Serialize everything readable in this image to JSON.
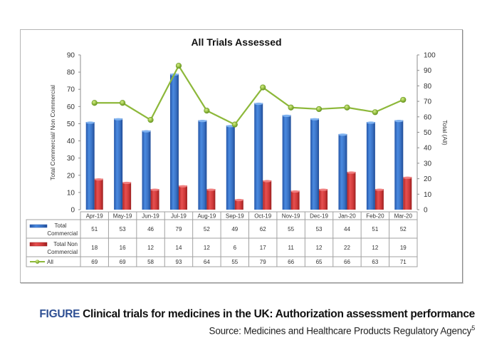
{
  "chart_data": {
    "type": "bar",
    "title": "All Trials Assessed",
    "categories": [
      "Apr-19",
      "May-19",
      "Jun-19",
      "Jul-19",
      "Aug-19",
      "Sep-19",
      "Oct-19",
      "Nov-19",
      "Dec-19",
      "Jan-20",
      "Feb-20",
      "Mar-20"
    ],
    "series": [
      {
        "name": "Total Commercial",
        "type": "bar",
        "axis": "left",
        "color": "#3a72c4",
        "values": [
          51,
          53,
          46,
          79,
          52,
          49,
          62,
          55,
          53,
          44,
          51,
          52
        ]
      },
      {
        "name": "Total Non Commercial",
        "type": "bar",
        "axis": "left",
        "color": "#d03a3a",
        "values": [
          18,
          16,
          12,
          14,
          12,
          6,
          17,
          11,
          12,
          22,
          12,
          19
        ]
      },
      {
        "name": "All",
        "type": "line",
        "axis": "right",
        "color": "#8db83a",
        "values": [
          69,
          69,
          58,
          93,
          64,
          55,
          79,
          66,
          65,
          66,
          63,
          71
        ]
      }
    ],
    "ylabel": "Total Commercial/ Non Commercial",
    "ylabel_right": "Total (All)",
    "ylim": [
      0,
      90
    ],
    "ylim_right": [
      0,
      100
    ],
    "yticks": [
      0,
      10,
      20,
      30,
      40,
      50,
      60,
      70,
      80,
      90
    ],
    "yticks_right": [
      0,
      10,
      20,
      30,
      40,
      50,
      60,
      70,
      80,
      90,
      100
    ],
    "legend": "data-table-bottom",
    "grid": false,
    "table_legend_labels": [
      [
        "Total",
        "Commercial"
      ],
      [
        "Total Non",
        "Commercial"
      ],
      [
        "All"
      ]
    ]
  },
  "caption": {
    "prefix": "FIGURE",
    "text": " Clinical trials for medicines in the UK: Authorization assessment performance",
    "source": "Source: Medicines and Healthcare Products Regulatory Agency",
    "source_sup": "5"
  }
}
